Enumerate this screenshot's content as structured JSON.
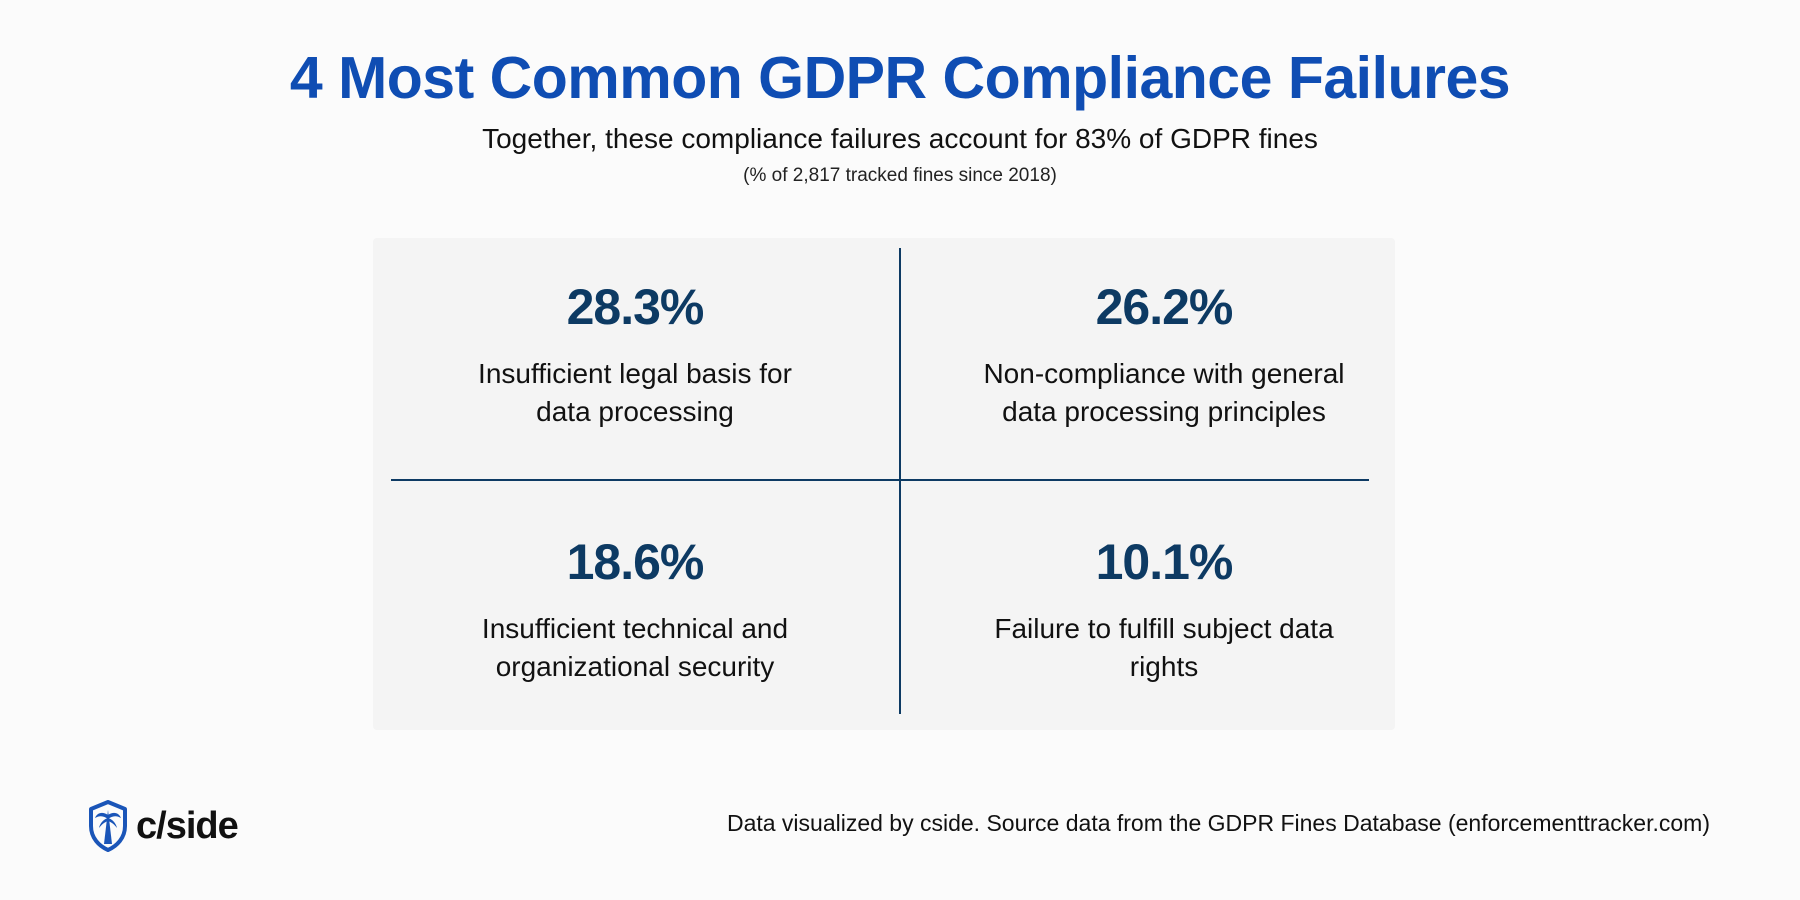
{
  "header": {
    "title": "4 Most Common GDPR Compliance Failures",
    "subtitle": "Together, these compliance failures account for 83% of GDPR fines",
    "note": "(% of 2,817 tracked fines since 2018)"
  },
  "chart_data": {
    "type": "table",
    "title": "4 Most Common GDPR Compliance Failures",
    "subtitle": "Together, these compliance failures account for 83% of GDPR fines",
    "items": [
      {
        "value": "28.3%",
        "label_line1": "Insufficient legal basis for",
        "label_line2": "data processing"
      },
      {
        "value": "26.2%",
        "label_line1": "Non-compliance with general",
        "label_line2": "data processing principles"
      },
      {
        "value": "18.6%",
        "label_line1": "Insufficient technical and",
        "label_line2": "organizational security"
      },
      {
        "value": "10.1%",
        "label_line1": "Failure to fulfill subject data",
        "label_line2": "rights"
      }
    ],
    "values": [
      28.3,
      26.2,
      18.6,
      10.1
    ]
  },
  "footer": {
    "logo_text": "c/side",
    "logo_icon": "shield-palm-icon",
    "source": "Data visualized by cside. Source data from the GDPR Fines Database (enforcementtracker.com)"
  },
  "colors": {
    "title": "#0f4db3",
    "value": "#0d3a63",
    "divider": "#0d3a63",
    "panel": "#f4f4f4",
    "background": "#fbfbfb"
  }
}
